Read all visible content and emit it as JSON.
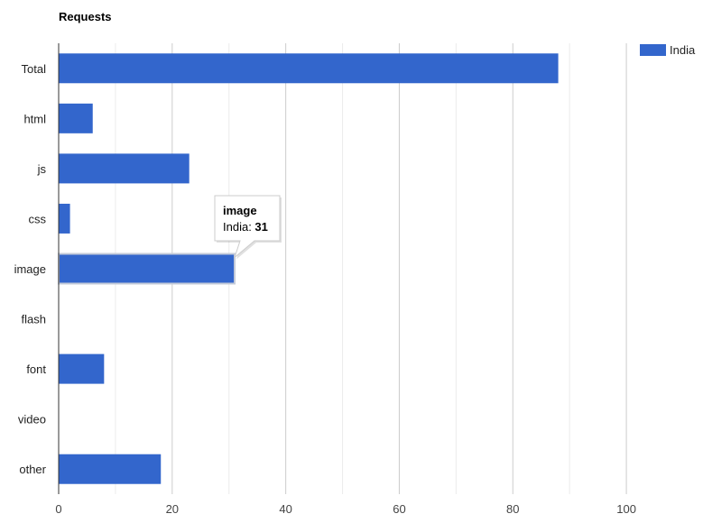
{
  "chart_data": {
    "type": "bar",
    "orientation": "horizontal",
    "title": "Requests",
    "categories": [
      "Total",
      "html",
      "js",
      "css",
      "image",
      "flash",
      "font",
      "video",
      "other"
    ],
    "series": [
      {
        "name": "India",
        "color": "#3366cc",
        "values": [
          88,
          6,
          23,
          2,
          31,
          0,
          8,
          0,
          18
        ]
      }
    ],
    "xlim": [
      0,
      110
    ],
    "xticks": [
      0,
      20,
      40,
      60,
      80,
      100
    ],
    "xtick_labels": [
      "0",
      "20",
      "40",
      "60",
      "80",
      "100"
    ],
    "minor_gridlines": [
      10,
      30,
      50,
      70,
      90
    ],
    "grid": true,
    "legend": {
      "position": "top-right",
      "label": "India"
    },
    "tooltip": {
      "category": "image",
      "series_label": "India: ",
      "value": "31"
    }
  }
}
